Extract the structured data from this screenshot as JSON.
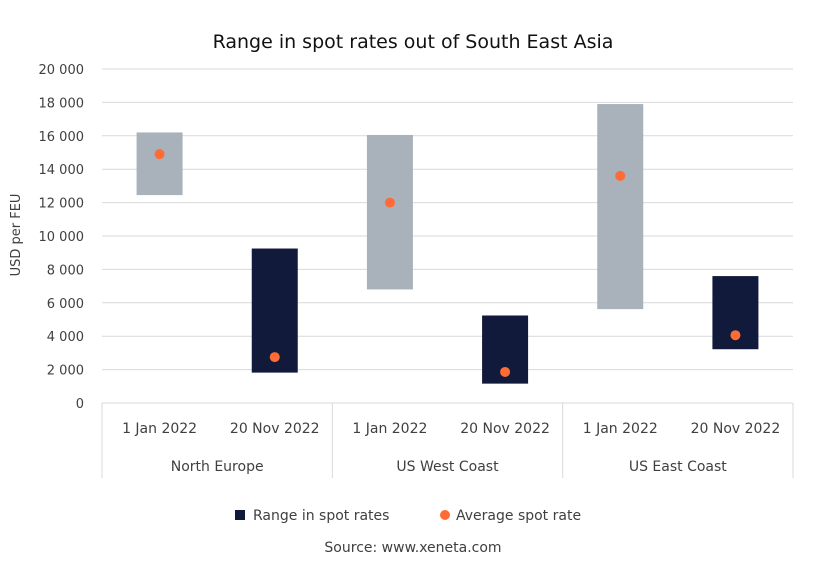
{
  "chart_data": {
    "type": "floating-bar",
    "title": "Range in spot rates out of South East Asia",
    "ylabel": "USD per FEU",
    "xlabel": "",
    "ylim": [
      0,
      20000
    ],
    "yticks": [
      0,
      2000,
      4000,
      6000,
      8000,
      10000,
      12000,
      14000,
      16000,
      18000,
      20000
    ],
    "ytick_labels": [
      "0",
      "2 000",
      "4 000",
      "6 000",
      "8 000",
      "10 000",
      "12 000",
      "14 000",
      "16 000",
      "18 000",
      "20 000"
    ],
    "grid": true,
    "groups": [
      {
        "name": "North Europe",
        "categories": [
          {
            "label": "1 Jan 2022",
            "low": 12450,
            "high": 16200,
            "avg": 14900,
            "color": "#a9b1bb"
          },
          {
            "label": "20 Nov 2022",
            "low": 1820,
            "high": 9250,
            "avg": 2750,
            "color": "#111a3a"
          }
        ]
      },
      {
        "name": "US West Coast",
        "categories": [
          {
            "label": "1 Jan 2022",
            "low": 6800,
            "high": 16050,
            "avg": 12000,
            "color": "#a9b1bb"
          },
          {
            "label": "20 Nov 2022",
            "low": 1160,
            "high": 5240,
            "avg": 1860,
            "color": "#111a3a"
          }
        ]
      },
      {
        "name": "US East Coast",
        "categories": [
          {
            "label": "1 Jan 2022",
            "low": 5620,
            "high": 17900,
            "avg": 13600,
            "color": "#a9b1bb"
          },
          {
            "label": "20 Nov 2022",
            "low": 3220,
            "high": 7600,
            "avg": 4060,
            "color": "#111a3a"
          }
        ]
      }
    ],
    "legend": {
      "position": "bottom",
      "items": [
        {
          "name": "Range in spot rates",
          "color": "#111a3a",
          "marker": "square"
        },
        {
          "name": "Average spot rate",
          "color": "#ff6b35",
          "marker": "circle"
        }
      ]
    },
    "source": "Source: www.xeneta.com"
  }
}
